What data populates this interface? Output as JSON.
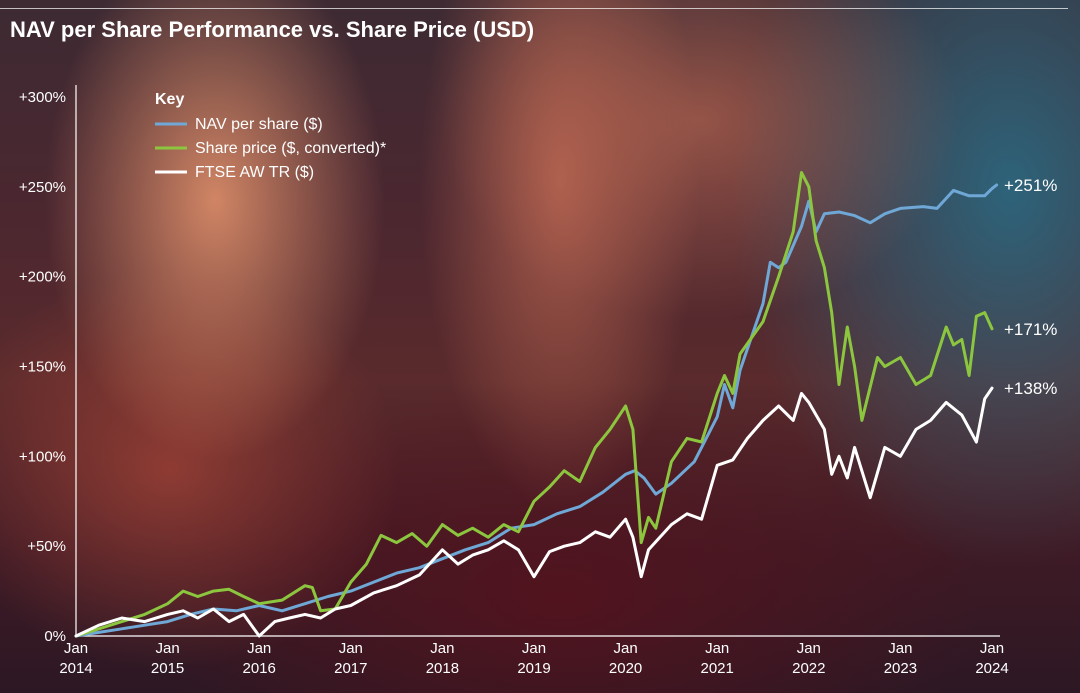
{
  "title": "NAV per Share Performance vs. Share Price (USD)",
  "chart_data": {
    "type": "line",
    "title": "NAV per Share Performance vs. Share Price (USD)",
    "ylim": [
      0,
      300
    ],
    "xlim": [
      2014.0,
      2024.0
    ],
    "y_ticks": [
      {
        "value": 0,
        "label": "0%"
      },
      {
        "value": 50,
        "label": "+50%"
      },
      {
        "value": 100,
        "label": "+100%"
      },
      {
        "value": 150,
        "label": "+150%"
      },
      {
        "value": 200,
        "label": "+200%"
      },
      {
        "value": 250,
        "label": "+250%"
      },
      {
        "value": 300,
        "label": "+300%"
      }
    ],
    "x_ticks": [
      {
        "value": 2014,
        "line1": "Jan",
        "line2": "2014"
      },
      {
        "value": 2015,
        "line1": "Jan",
        "line2": "2015"
      },
      {
        "value": 2016,
        "line1": "Jan",
        "line2": "2016"
      },
      {
        "value": 2017,
        "line1": "Jan",
        "line2": "2017"
      },
      {
        "value": 2018,
        "line1": "Jan",
        "line2": "2018"
      },
      {
        "value": 2019,
        "line1": "Jan",
        "line2": "2019"
      },
      {
        "value": 2020,
        "line1": "Jan",
        "line2": "2020"
      },
      {
        "value": 2021,
        "line1": "Jan",
        "line2": "2021"
      },
      {
        "value": 2022,
        "line1": "Jan",
        "line2": "2022"
      },
      {
        "value": 2023,
        "line1": "Jan",
        "line2": "2023"
      },
      {
        "value": 2024,
        "line1": "Jan",
        "line2": "2024"
      }
    ],
    "legend": {
      "title": "Key",
      "placement": "top-left"
    },
    "grid": false,
    "series": [
      {
        "name": "NAV per share ($)",
        "color": "#6fa8d6",
        "end_label": "+251%",
        "points": [
          [
            2014.0,
            0
          ],
          [
            2014.25,
            2
          ],
          [
            2014.5,
            4
          ],
          [
            2014.75,
            6
          ],
          [
            2015.0,
            8
          ],
          [
            2015.25,
            12
          ],
          [
            2015.5,
            15
          ],
          [
            2015.75,
            14
          ],
          [
            2016.0,
            17
          ],
          [
            2016.25,
            14
          ],
          [
            2016.5,
            18
          ],
          [
            2016.75,
            22
          ],
          [
            2017.0,
            25
          ],
          [
            2017.25,
            30
          ],
          [
            2017.5,
            35
          ],
          [
            2017.75,
            38
          ],
          [
            2018.0,
            43
          ],
          [
            2018.25,
            48
          ],
          [
            2018.5,
            52
          ],
          [
            2018.75,
            60
          ],
          [
            2019.0,
            62
          ],
          [
            2019.25,
            68
          ],
          [
            2019.5,
            72
          ],
          [
            2019.75,
            80
          ],
          [
            2020.0,
            90
          ],
          [
            2020.1,
            92
          ],
          [
            2020.2,
            88
          ],
          [
            2020.33,
            79
          ],
          [
            2020.5,
            85
          ],
          [
            2020.75,
            97
          ],
          [
            2021.0,
            122
          ],
          [
            2021.08,
            140
          ],
          [
            2021.17,
            127
          ],
          [
            2021.25,
            148
          ],
          [
            2021.5,
            185
          ],
          [
            2021.58,
            208
          ],
          [
            2021.67,
            205
          ],
          [
            2021.75,
            208
          ],
          [
            2021.92,
            228
          ],
          [
            2022.0,
            242
          ],
          [
            2022.08,
            225
          ],
          [
            2022.17,
            235
          ],
          [
            2022.33,
            236
          ],
          [
            2022.5,
            234
          ],
          [
            2022.67,
            230
          ],
          [
            2022.83,
            235
          ],
          [
            2023.0,
            238
          ],
          [
            2023.25,
            239
          ],
          [
            2023.4,
            238
          ],
          [
            2023.58,
            248
          ],
          [
            2023.75,
            245
          ],
          [
            2023.92,
            245
          ],
          [
            2024.0,
            249
          ],
          [
            2024.05,
            251
          ]
        ]
      },
      {
        "name": "Share price ($, converted)*",
        "color": "#8cc63f",
        "end_label": "+171%",
        "points": [
          [
            2014.0,
            0
          ],
          [
            2014.25,
            4
          ],
          [
            2014.5,
            8
          ],
          [
            2014.75,
            12
          ],
          [
            2015.0,
            18
          ],
          [
            2015.17,
            25
          ],
          [
            2015.33,
            22
          ],
          [
            2015.5,
            25
          ],
          [
            2015.67,
            26
          ],
          [
            2015.83,
            22
          ],
          [
            2016.0,
            18
          ],
          [
            2016.25,
            20
          ],
          [
            2016.5,
            28
          ],
          [
            2016.58,
            27
          ],
          [
            2016.67,
            14
          ],
          [
            2016.83,
            15
          ],
          [
            2017.0,
            30
          ],
          [
            2017.17,
            40
          ],
          [
            2017.33,
            56
          ],
          [
            2017.5,
            52
          ],
          [
            2017.67,
            57
          ],
          [
            2017.83,
            50
          ],
          [
            2018.0,
            62
          ],
          [
            2018.17,
            56
          ],
          [
            2018.33,
            60
          ],
          [
            2018.5,
            55
          ],
          [
            2018.67,
            62
          ],
          [
            2018.83,
            58
          ],
          [
            2019.0,
            75
          ],
          [
            2019.17,
            83
          ],
          [
            2019.33,
            92
          ],
          [
            2019.5,
            86
          ],
          [
            2019.67,
            105
          ],
          [
            2019.83,
            115
          ],
          [
            2020.0,
            128
          ],
          [
            2020.08,
            115
          ],
          [
            2020.17,
            52
          ],
          [
            2020.25,
            66
          ],
          [
            2020.33,
            60
          ],
          [
            2020.5,
            97
          ],
          [
            2020.67,
            110
          ],
          [
            2020.83,
            108
          ],
          [
            2021.0,
            135
          ],
          [
            2021.08,
            145
          ],
          [
            2021.17,
            135
          ],
          [
            2021.25,
            157
          ],
          [
            2021.5,
            175
          ],
          [
            2021.67,
            200
          ],
          [
            2021.83,
            225
          ],
          [
            2021.92,
            258
          ],
          [
            2022.0,
            250
          ],
          [
            2022.08,
            220
          ],
          [
            2022.17,
            205
          ],
          [
            2022.25,
            180
          ],
          [
            2022.33,
            140
          ],
          [
            2022.42,
            172
          ],
          [
            2022.5,
            150
          ],
          [
            2022.58,
            120
          ],
          [
            2022.75,
            155
          ],
          [
            2022.83,
            150
          ],
          [
            2023.0,
            155
          ],
          [
            2023.17,
            140
          ],
          [
            2023.33,
            145
          ],
          [
            2023.5,
            172
          ],
          [
            2023.58,
            162
          ],
          [
            2023.67,
            165
          ],
          [
            2023.75,
            145
          ],
          [
            2023.83,
            178
          ],
          [
            2023.92,
            180
          ],
          [
            2024.0,
            171
          ]
        ]
      },
      {
        "name": "FTSE AW TR ($)",
        "color": "#ffffff",
        "end_label": "+138%",
        "points": [
          [
            2014.0,
            0
          ],
          [
            2014.25,
            6
          ],
          [
            2014.5,
            10
          ],
          [
            2014.75,
            8
          ],
          [
            2015.0,
            12
          ],
          [
            2015.17,
            14
          ],
          [
            2015.33,
            10
          ],
          [
            2015.5,
            15
          ],
          [
            2015.67,
            8
          ],
          [
            2015.83,
            12
          ],
          [
            2016.0,
            0
          ],
          [
            2016.17,
            8
          ],
          [
            2016.33,
            10
          ],
          [
            2016.5,
            12
          ],
          [
            2016.67,
            10
          ],
          [
            2016.83,
            15
          ],
          [
            2017.0,
            17
          ],
          [
            2017.25,
            24
          ],
          [
            2017.5,
            28
          ],
          [
            2017.75,
            34
          ],
          [
            2018.0,
            48
          ],
          [
            2018.17,
            40
          ],
          [
            2018.33,
            45
          ],
          [
            2018.5,
            48
          ],
          [
            2018.67,
            53
          ],
          [
            2018.83,
            48
          ],
          [
            2019.0,
            33
          ],
          [
            2019.17,
            47
          ],
          [
            2019.33,
            50
          ],
          [
            2019.5,
            52
          ],
          [
            2019.67,
            58
          ],
          [
            2019.83,
            55
          ],
          [
            2020.0,
            65
          ],
          [
            2020.08,
            55
          ],
          [
            2020.17,
            33
          ],
          [
            2020.25,
            48
          ],
          [
            2020.5,
            62
          ],
          [
            2020.67,
            68
          ],
          [
            2020.83,
            65
          ],
          [
            2021.0,
            95
          ],
          [
            2021.17,
            98
          ],
          [
            2021.33,
            110
          ],
          [
            2021.5,
            120
          ],
          [
            2021.67,
            128
          ],
          [
            2021.83,
            120
          ],
          [
            2021.92,
            135
          ],
          [
            2022.0,
            130
          ],
          [
            2022.17,
            115
          ],
          [
            2022.25,
            90
          ],
          [
            2022.33,
            100
          ],
          [
            2022.42,
            88
          ],
          [
            2022.5,
            105
          ],
          [
            2022.67,
            77
          ],
          [
            2022.83,
            105
          ],
          [
            2023.0,
            100
          ],
          [
            2023.17,
            115
          ],
          [
            2023.33,
            120
          ],
          [
            2023.5,
            130
          ],
          [
            2023.67,
            123
          ],
          [
            2023.83,
            108
          ],
          [
            2023.92,
            132
          ],
          [
            2024.0,
            138
          ]
        ]
      }
    ]
  }
}
